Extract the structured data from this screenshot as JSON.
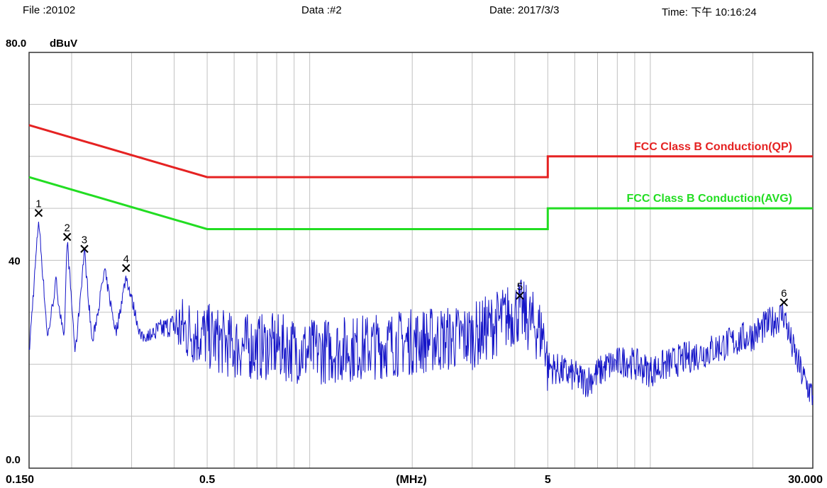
{
  "header": {
    "file": "File :20102",
    "data": "Data :#2",
    "date": "Date: 2017/3/3",
    "time": "Time: 下午 10:16:24"
  },
  "chart_data": {
    "type": "line",
    "xscale": "log",
    "xlim": [
      0.15,
      30
    ],
    "ylim": [
      0,
      80
    ],
    "ylabel": "dBuV",
    "xlabel": "(MHz)",
    "y_ticks": [
      {
        "value": 0,
        "label": "0.0"
      },
      {
        "value": 40,
        "label": "40"
      },
      {
        "value": 80,
        "label": "80.0"
      }
    ],
    "x_ticks": [
      {
        "value": 0.15,
        "label": "0.150"
      },
      {
        "value": 0.5,
        "label": "0.5"
      },
      {
        "value": 5,
        "label": "5"
      },
      {
        "value": 30,
        "label": "30.000"
      }
    ],
    "grid": true,
    "colors": {
      "qp": "#e52222",
      "avg": "#22dd22",
      "trace": "#1515c8",
      "grid": "#c0c0c0"
    },
    "limits": [
      {
        "name": "FCC Class B Conduction(QP)",
        "color": "#e52222",
        "points": [
          [
            0.15,
            66
          ],
          [
            0.5,
            56
          ],
          [
            5,
            56
          ],
          [
            5,
            60
          ],
          [
            30,
            60
          ]
        ]
      },
      {
        "name": "FCC Class B Conduction(AVG)",
        "color": "#22dd22",
        "points": [
          [
            0.15,
            56
          ],
          [
            0.5,
            46
          ],
          [
            5,
            46
          ],
          [
            5,
            50
          ],
          [
            30,
            50
          ]
        ]
      }
    ],
    "markers": [
      {
        "label": "1",
        "x": 0.16,
        "y": 49.1
      },
      {
        "label": "2",
        "x": 0.194,
        "y": 44.5
      },
      {
        "label": "3",
        "x": 0.218,
        "y": 42.2
      },
      {
        "label": "4",
        "x": 0.289,
        "y": 38.5
      },
      {
        "label": "5",
        "x": 4.14,
        "y": 33.2
      },
      {
        "label": "6",
        "x": 24.68,
        "y": 31.9
      }
    ],
    "trace_envelope": [
      [
        0.15,
        22
      ],
      [
        0.16,
        48
      ],
      [
        0.17,
        25
      ],
      [
        0.18,
        36
      ],
      [
        0.19,
        24
      ],
      [
        0.194,
        44
      ],
      [
        0.205,
        22
      ],
      [
        0.218,
        42
      ],
      [
        0.23,
        24
      ],
      [
        0.25,
        38
      ],
      [
        0.27,
        26
      ],
      [
        0.289,
        37
      ],
      [
        0.32,
        25
      ],
      [
        0.4,
        28
      ],
      [
        0.5,
        26
      ],
      [
        0.6,
        24
      ],
      [
        0.8,
        24
      ],
      [
        1.0,
        23
      ],
      [
        1.5,
        24
      ],
      [
        2.0,
        25
      ],
      [
        3.0,
        26
      ],
      [
        4.14,
        31
      ],
      [
        4.9,
        26
      ],
      [
        5.0,
        20
      ],
      [
        5.5,
        19
      ],
      [
        6.5,
        17
      ],
      [
        7.5,
        20
      ],
      [
        8.5,
        21
      ],
      [
        10,
        19
      ],
      [
        12,
        21
      ],
      [
        15,
        23
      ],
      [
        20,
        26
      ],
      [
        24.68,
        30
      ],
      [
        26,
        24
      ],
      [
        28,
        18
      ],
      [
        30,
        14
      ]
    ]
  }
}
